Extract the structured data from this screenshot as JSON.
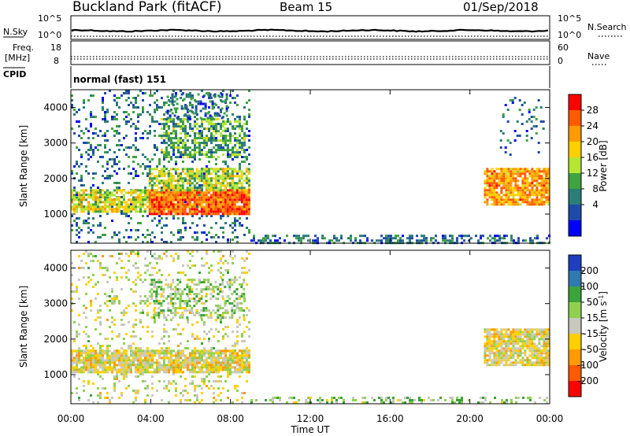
{
  "header": {
    "station": "Buckland Park (fitACF)",
    "beam": "Beam 15",
    "date": "01/Sep/2018"
  },
  "noise_panel": {
    "left_label": "N.Sky",
    "left_ticks": [
      "10^5",
      "10^0"
    ],
    "right_ticks": [
      "10^5",
      "10^0"
    ],
    "right_label": "N.Search"
  },
  "freq_panel": {
    "left_label_1": "Freq.",
    "left_label_2": "[MHz]",
    "left_ticks": [
      "18",
      "8"
    ],
    "right_ticks": [
      "60",
      "0"
    ],
    "right_label": "Nave"
  },
  "cpid_panel": {
    "label": "CPID",
    "mode_text": "normal (fast) 151"
  },
  "chart_data": [
    {
      "type": "heatmap",
      "name_key": "power",
      "ylabel": "Slant Range [km]",
      "xlabel": "",
      "x_ticks": [
        "00:00",
        "04:00",
        "08:00",
        "12:00",
        "16:00",
        "20:00",
        "00:00"
      ],
      "y_ticks": [
        "1000",
        "2000",
        "3000",
        "4000"
      ],
      "xlim": [
        0,
        24
      ],
      "ylim": [
        180,
        4500
      ],
      "colorbar_label": "Power [dB]",
      "colorbar_ticks": [
        "28",
        "24",
        "20",
        "16",
        "12",
        "8",
        "4"
      ],
      "colorbar_colors": [
        "#ff0000",
        "#ff5a00",
        "#ff9a00",
        "#ffd000",
        "#b4e632",
        "#3fa33f",
        "#2c7c78",
        "#1f4aa8",
        "#0000ff"
      ],
      "regions": [
        {
          "t0": 0.0,
          "t1": 8.9,
          "r0": 200,
          "r1": 4500,
          "level": 0.25,
          "density": 0.18
        },
        {
          "t0": 0.0,
          "t1": 3.9,
          "r0": 1100,
          "r1": 1700,
          "level": 0.55,
          "density": 0.7
        },
        {
          "t0": 3.9,
          "t1": 8.9,
          "r0": 1000,
          "r1": 1700,
          "level": 0.82,
          "density": 0.95
        },
        {
          "t0": 3.9,
          "t1": 8.9,
          "r0": 1700,
          "r1": 2300,
          "level": 0.5,
          "density": 0.7
        },
        {
          "t0": 4.5,
          "t1": 8.7,
          "r0": 2600,
          "r1": 3700,
          "level": 0.4,
          "density": 0.5
        },
        {
          "t0": 4.8,
          "t1": 7.8,
          "r0": 3700,
          "r1": 4400,
          "level": 0.25,
          "density": 0.35
        },
        {
          "t0": 9.0,
          "t1": 24.0,
          "r0": 200,
          "r1": 420,
          "level": 0.25,
          "density": 0.45
        },
        {
          "t0": 20.7,
          "t1": 23.9,
          "r0": 1250,
          "r1": 2300,
          "level": 0.72,
          "density": 0.85
        },
        {
          "t0": 21.5,
          "t1": 23.7,
          "r0": 2700,
          "r1": 4300,
          "level": 0.25,
          "density": 0.1
        }
      ]
    },
    {
      "type": "heatmap",
      "name_key": "velocity",
      "ylabel": "Slant Range [km]",
      "xlabel": "Time UT",
      "x_ticks": [
        "00:00",
        "04:00",
        "08:00",
        "12:00",
        "16:00",
        "20:00",
        "00:00"
      ],
      "y_ticks": [
        "1000",
        "2000",
        "3000",
        "4000"
      ],
      "xlim": [
        0,
        24
      ],
      "ylim": [
        180,
        4500
      ],
      "colorbar_label": "Velocity [m s^-1]",
      "colorbar_ticks": [
        "200",
        "100",
        "50",
        "15",
        "-15",
        "-50",
        "-100",
        "-200"
      ],
      "colorbar_colors": [
        "#1f3fbf",
        "#2f7ab0",
        "#3aa33a",
        "#8fd14f",
        "#c8c8be",
        "#ffd000",
        "#ff9a00",
        "#ff5a00",
        "#ff0000"
      ],
      "regions": [
        {
          "t0": 0.0,
          "t1": 8.9,
          "r0": 200,
          "r1": 4500,
          "level": 0.5,
          "density": 0.16
        },
        {
          "t0": 0.0,
          "t1": 8.9,
          "r0": 1100,
          "r1": 1700,
          "level": 0.45,
          "density": 0.85
        },
        {
          "t0": 4.0,
          "t1": 8.7,
          "r0": 2600,
          "r1": 3700,
          "level": 0.6,
          "density": 0.35
        },
        {
          "t0": 9.0,
          "t1": 24.0,
          "r0": 200,
          "r1": 380,
          "level": 0.6,
          "density": 0.35
        },
        {
          "t0": 20.7,
          "t1": 23.9,
          "r0": 1300,
          "r1": 2300,
          "level": 0.45,
          "density": 0.85
        }
      ]
    }
  ]
}
